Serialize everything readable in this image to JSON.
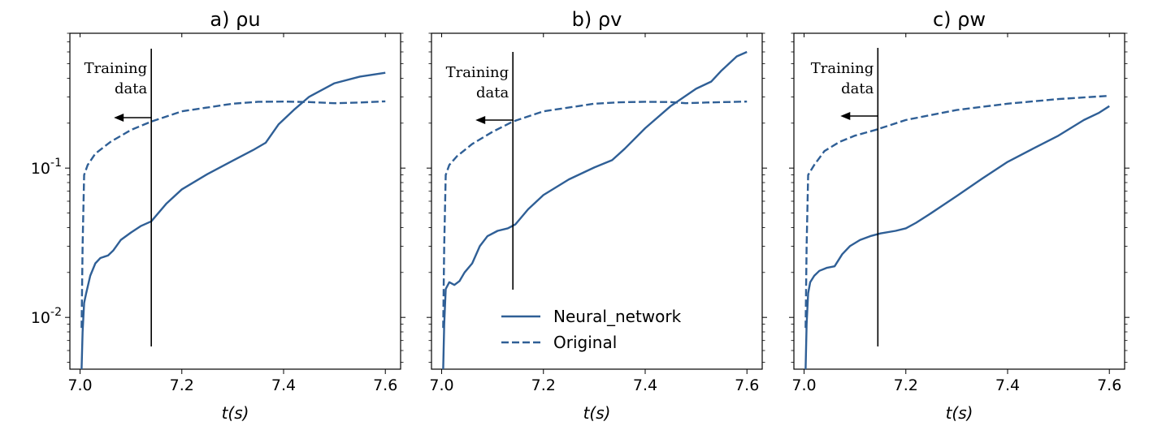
{
  "chart_data": [
    {
      "type": "line",
      "title": "a) ρu",
      "xlabel": "t(s)",
      "ylabel": "",
      "xlim": [
        6.98,
        7.63
      ],
      "ylim": [
        0.0045,
        0.8
      ],
      "yscale": "log",
      "xticks": [
        "7.0",
        "7.2",
        "7.4",
        "7.6"
      ],
      "yticks": [
        "10^-1",
        "10^-2"
      ],
      "annotation": {
        "text_line1": "Training",
        "text_line2": "data",
        "x": 7.14
      },
      "series": [
        {
          "name": "Neural_network",
          "style": "solid",
          "points": [
            [
              7.003,
              0.0045
            ],
            [
              7.005,
              0.008
            ],
            [
              7.008,
              0.0125
            ],
            [
              7.012,
              0.0145
            ],
            [
              7.02,
              0.019
            ],
            [
              7.03,
              0.023
            ],
            [
              7.04,
              0.025
            ],
            [
              7.055,
              0.026
            ],
            [
              7.065,
              0.028
            ],
            [
              7.08,
              0.033
            ],
            [
              7.1,
              0.037
            ],
            [
              7.12,
              0.041
            ],
            [
              7.14,
              0.044
            ],
            [
              7.17,
              0.058
            ],
            [
              7.2,
              0.072
            ],
            [
              7.25,
              0.091
            ],
            [
              7.3,
              0.112
            ],
            [
              7.34,
              0.132
            ],
            [
              7.365,
              0.148
            ],
            [
              7.39,
              0.196
            ],
            [
              7.42,
              0.245
            ],
            [
              7.45,
              0.3
            ],
            [
              7.5,
              0.37
            ],
            [
              7.55,
              0.41
            ],
            [
              7.6,
              0.435
            ]
          ]
        },
        {
          "name": "Original",
          "style": "dashed",
          "points": [
            [
              7.003,
              0.0085
            ],
            [
              7.005,
              0.03
            ],
            [
              7.008,
              0.09
            ],
            [
              7.015,
              0.105
            ],
            [
              7.03,
              0.125
            ],
            [
              7.06,
              0.15
            ],
            [
              7.1,
              0.18
            ],
            [
              7.14,
              0.205
            ],
            [
              7.2,
              0.24
            ],
            [
              7.3,
              0.27
            ],
            [
              7.35,
              0.278
            ],
            [
              7.4,
              0.279
            ],
            [
              7.45,
              0.277
            ],
            [
              7.5,
              0.272
            ],
            [
              7.55,
              0.275
            ],
            [
              7.6,
              0.28
            ]
          ]
        }
      ]
    },
    {
      "type": "line",
      "title": "b) ρv",
      "xlabel": "t(s)",
      "ylabel": "",
      "xlim": [
        6.98,
        7.63
      ],
      "ylim": [
        0.0045,
        0.8
      ],
      "yscale": "log",
      "xticks": [
        "7.0",
        "7.2",
        "7.4",
        "7.6"
      ],
      "yticks": [],
      "annotation": {
        "text_line1": "Training",
        "text_line2": "data",
        "x": 7.14
      },
      "legend": {
        "location": "lower-center",
        "entries": [
          "Neural_network",
          "Original"
        ]
      },
      "series": [
        {
          "name": "Neural_network",
          "style": "solid",
          "points": [
            [
              7.003,
              0.0045
            ],
            [
              7.005,
              0.009
            ],
            [
              7.008,
              0.0155
            ],
            [
              7.015,
              0.0172
            ],
            [
              7.025,
              0.0165
            ],
            [
              7.035,
              0.0175
            ],
            [
              7.045,
              0.02
            ],
            [
              7.06,
              0.023
            ],
            [
              7.075,
              0.03
            ],
            [
              7.09,
              0.035
            ],
            [
              7.11,
              0.038
            ],
            [
              7.13,
              0.0395
            ],
            [
              7.145,
              0.042
            ],
            [
              7.17,
              0.053
            ],
            [
              7.2,
              0.066
            ],
            [
              7.25,
              0.084
            ],
            [
              7.3,
              0.101
            ],
            [
              7.335,
              0.113
            ],
            [
              7.36,
              0.135
            ],
            [
              7.4,
              0.185
            ],
            [
              7.45,
              0.26
            ],
            [
              7.5,
              0.34
            ],
            [
              7.53,
              0.38
            ],
            [
              7.55,
              0.45
            ],
            [
              7.58,
              0.56
            ],
            [
              7.6,
              0.6
            ]
          ]
        },
        {
          "name": "Original",
          "style": "dashed",
          "points": [
            [
              7.003,
              0.0085
            ],
            [
              7.005,
              0.03
            ],
            [
              7.008,
              0.09
            ],
            [
              7.015,
              0.105
            ],
            [
              7.03,
              0.12
            ],
            [
              7.06,
              0.145
            ],
            [
              7.1,
              0.175
            ],
            [
              7.14,
              0.205
            ],
            [
              7.2,
              0.24
            ],
            [
              7.3,
              0.27
            ],
            [
              7.35,
              0.276
            ],
            [
              7.4,
              0.278
            ],
            [
              7.45,
              0.277
            ],
            [
              7.48,
              0.272
            ],
            [
              7.52,
              0.275
            ],
            [
              7.6,
              0.279
            ]
          ]
        }
      ]
    },
    {
      "type": "line",
      "title": "c) ρw",
      "xlabel": "t(s)",
      "ylabel": "",
      "xlim": [
        6.98,
        7.63
      ],
      "ylim": [
        0.0045,
        0.8
      ],
      "yscale": "log",
      "xticks": [
        "7.0",
        "7.2",
        "7.4",
        "7.6"
      ],
      "yticks": [],
      "annotation": {
        "text_line1": "Training",
        "text_line2": "data",
        "x": 7.145
      },
      "series": [
        {
          "name": "Neural_network",
          "style": "solid",
          "points": [
            [
              7.003,
              0.0045
            ],
            [
              7.005,
              0.009
            ],
            [
              7.008,
              0.0145
            ],
            [
              7.012,
              0.0172
            ],
            [
              7.02,
              0.019
            ],
            [
              7.03,
              0.0205
            ],
            [
              7.045,
              0.0215
            ],
            [
              7.06,
              0.022
            ],
            [
              7.075,
              0.0265
            ],
            [
              7.09,
              0.03
            ],
            [
              7.11,
              0.033
            ],
            [
              7.13,
              0.035
            ],
            [
              7.15,
              0.0365
            ],
            [
              7.18,
              0.038
            ],
            [
              7.2,
              0.0395
            ],
            [
              7.22,
              0.043
            ],
            [
              7.25,
              0.05
            ],
            [
              7.3,
              0.065
            ],
            [
              7.35,
              0.085
            ],
            [
              7.4,
              0.11
            ],
            [
              7.45,
              0.135
            ],
            [
              7.5,
              0.165
            ],
            [
              7.55,
              0.21
            ],
            [
              7.58,
              0.235
            ],
            [
              7.6,
              0.26
            ]
          ]
        },
        {
          "name": "Original",
          "style": "dashed",
          "points": [
            [
              7.003,
              0.0085
            ],
            [
              7.005,
              0.03
            ],
            [
              7.008,
              0.09
            ],
            [
              7.02,
              0.105
            ],
            [
              7.04,
              0.13
            ],
            [
              7.07,
              0.15
            ],
            [
              7.1,
              0.165
            ],
            [
              7.14,
              0.18
            ],
            [
              7.2,
              0.21
            ],
            [
              7.3,
              0.245
            ],
            [
              7.4,
              0.27
            ],
            [
              7.5,
              0.29
            ],
            [
              7.6,
              0.305
            ]
          ]
        }
      ]
    }
  ]
}
